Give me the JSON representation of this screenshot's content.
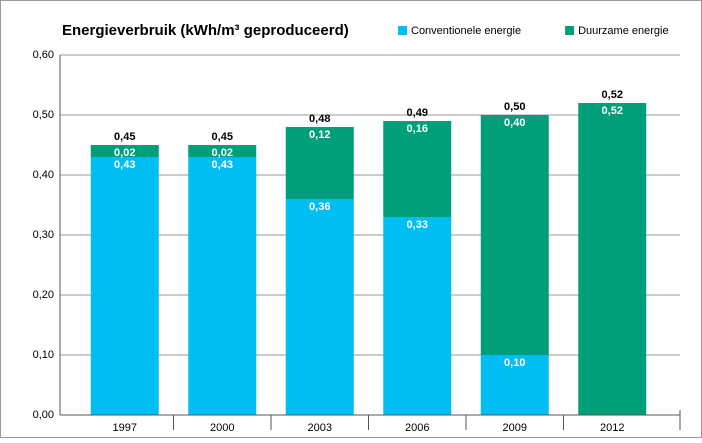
{
  "chart_data": {
    "type": "stacked_bar",
    "title": "Energieverbruik (kWh/m³ geproduceerd)",
    "categories": [
      "1997",
      "2000",
      "2003",
      "2006",
      "2009",
      "2012"
    ],
    "series": [
      {
        "name": "Conventionele energie",
        "color": "#00bdf2",
        "values": [
          0.43,
          0.43,
          0.36,
          0.33,
          0.1,
          null
        ],
        "value_labels": [
          "0,43",
          "0,43",
          "0,36",
          "0,33",
          "0,10",
          null
        ]
      },
      {
        "name": "Duurzame energie",
        "color": "#009f79",
        "values": [
          0.02,
          0.02,
          0.12,
          0.16,
          0.4,
          0.52
        ],
        "value_labels": [
          "0,02",
          "0,02",
          "0,12",
          "0,16",
          "0,40",
          "0,52"
        ]
      }
    ],
    "totals": [
      0.45,
      0.45,
      0.48,
      0.49,
      0.5,
      0.52
    ],
    "total_labels": [
      "0,45",
      "0,45",
      "0,48",
      "0,49",
      "0,50",
      "0,52"
    ],
    "ylim": [
      0,
      0.6
    ],
    "yticks": [
      {
        "value": 0,
        "label": "0,00"
      },
      {
        "value": 0.1,
        "label": "0,10"
      },
      {
        "value": 0.2,
        "label": "0,20"
      },
      {
        "value": 0.3,
        "label": "0,30"
      },
      {
        "value": 0.4,
        "label": "0,40"
      },
      {
        "value": 0.5,
        "label": "0,50"
      },
      {
        "value": 0.6,
        "label": "0,60"
      }
    ],
    "grid": true,
    "legend": "top-right"
  }
}
